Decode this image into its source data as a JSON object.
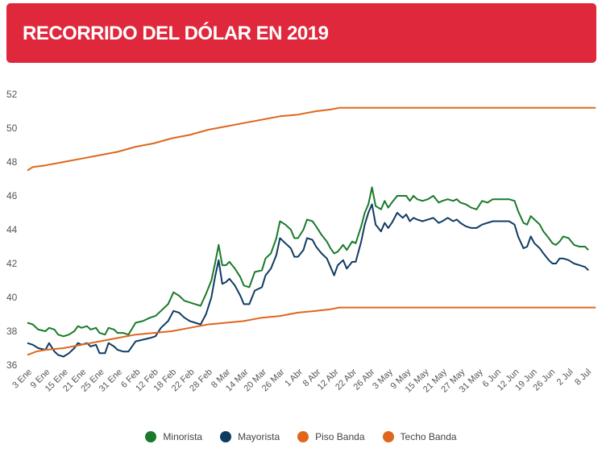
{
  "header": {
    "title": "RECORRIDO DEL DÓLAR EN 2019"
  },
  "colors": {
    "minorista": "#1a7a2a",
    "mayorista": "#0f3b63",
    "piso": "#e0661c",
    "techo": "#e0661c"
  },
  "legend": [
    {
      "label": "Minorista",
      "color": "#1a7a2a"
    },
    {
      "label": "Mayorista",
      "color": "#0f3b63"
    },
    {
      "label": "Piso Banda",
      "color": "#e0661c"
    },
    {
      "label": "Techo Banda",
      "color": "#e0661c"
    }
  ],
  "chart_data": {
    "type": "line",
    "title": "RECORRIDO DEL DÓLAR EN 2019",
    "xlabel": "",
    "ylabel": "",
    "x_ticks": [
      "3 Ene",
      "9 Ene",
      "15 Ene",
      "21 Ene",
      "25 Ene",
      "31 Ene",
      "6 Feb",
      "12 Feb",
      "18 Feb",
      "22 Feb",
      "28 Feb",
      "8 Mar",
      "14 Mar",
      "20 Mar",
      "26 Mar",
      "1 Abr",
      "8 Abr",
      "12 Abr",
      "22 Abr",
      "26 Abr",
      "3 May",
      "9 May",
      "15 May",
      "21 May",
      "27 May",
      "31 May",
      "6 Jun",
      "12 Jun",
      "19 Jun",
      "26 Jun",
      "2 Jul",
      "8 Jul"
    ],
    "y_ticks": [
      36,
      38,
      40,
      42,
      44,
      46,
      48,
      50,
      52
    ],
    "ylim": [
      36,
      52
    ],
    "grid": false,
    "legend_position": "bottom",
    "series": [
      {
        "name": "Minorista",
        "color": "#1a7a2a",
        "points": [
          [
            0,
            38.5
          ],
          [
            0.3,
            38.4
          ],
          [
            0.6,
            38.1
          ],
          [
            1.0,
            38.0
          ],
          [
            1.2,
            38.2
          ],
          [
            1.5,
            38.1
          ],
          [
            1.7,
            37.8
          ],
          [
            2.0,
            37.7
          ],
          [
            2.3,
            37.8
          ],
          [
            2.6,
            38.0
          ],
          [
            2.8,
            38.3
          ],
          [
            3.0,
            38.2
          ],
          [
            3.3,
            38.3
          ],
          [
            3.5,
            38.1
          ],
          [
            3.8,
            38.2
          ],
          [
            4.0,
            37.9
          ],
          [
            4.3,
            37.8
          ],
          [
            4.5,
            38.2
          ],
          [
            4.8,
            38.1
          ],
          [
            5.0,
            37.9
          ],
          [
            5.3,
            37.9
          ],
          [
            5.6,
            37.8
          ],
          [
            6.0,
            38.5
          ],
          [
            6.4,
            38.6
          ],
          [
            6.8,
            38.8
          ],
          [
            7.1,
            38.9
          ],
          [
            7.4,
            39.2
          ],
          [
            7.8,
            39.6
          ],
          [
            8.1,
            40.3
          ],
          [
            8.4,
            40.1
          ],
          [
            8.7,
            39.8
          ],
          [
            9.0,
            39.7
          ],
          [
            9.3,
            39.6
          ],
          [
            9.6,
            39.5
          ],
          [
            9.9,
            40.2
          ],
          [
            10.2,
            41.0
          ],
          [
            10.4,
            42.0
          ],
          [
            10.6,
            43.1
          ],
          [
            10.8,
            41.9
          ],
          [
            11.0,
            41.9
          ],
          [
            11.2,
            42.1
          ],
          [
            11.5,
            41.7
          ],
          [
            11.8,
            41.2
          ],
          [
            12.0,
            40.7
          ],
          [
            12.3,
            40.6
          ],
          [
            12.6,
            41.5
          ],
          [
            13.0,
            41.6
          ],
          [
            13.2,
            42.3
          ],
          [
            13.5,
            42.6
          ],
          [
            13.8,
            43.5
          ],
          [
            14.0,
            44.5
          ],
          [
            14.3,
            44.3
          ],
          [
            14.6,
            44.0
          ],
          [
            14.8,
            43.5
          ],
          [
            15.0,
            43.5
          ],
          [
            15.3,
            44.0
          ],
          [
            15.5,
            44.6
          ],
          [
            15.8,
            44.5
          ],
          [
            16.0,
            44.2
          ],
          [
            16.3,
            43.7
          ],
          [
            16.6,
            43.3
          ],
          [
            16.8,
            42.9
          ],
          [
            17.0,
            42.6
          ],
          [
            17.2,
            42.7
          ],
          [
            17.5,
            43.1
          ],
          [
            17.7,
            42.8
          ],
          [
            18.0,
            43.3
          ],
          [
            18.2,
            43.2
          ],
          [
            18.5,
            44.2
          ],
          [
            18.7,
            45.0
          ],
          [
            18.9,
            45.5
          ],
          [
            19.1,
            46.5
          ],
          [
            19.3,
            45.4
          ],
          [
            19.6,
            45.2
          ],
          [
            19.8,
            45.7
          ],
          [
            20.0,
            45.3
          ],
          [
            20.2,
            45.6
          ],
          [
            20.5,
            46.0
          ],
          [
            20.8,
            46.0
          ],
          [
            21.0,
            46.0
          ],
          [
            21.2,
            45.7
          ],
          [
            21.4,
            46.0
          ],
          [
            21.6,
            45.8
          ],
          [
            21.9,
            45.7
          ],
          [
            22.2,
            45.8
          ],
          [
            22.5,
            46.0
          ],
          [
            22.8,
            45.6
          ],
          [
            23.0,
            45.7
          ],
          [
            23.3,
            45.8
          ],
          [
            23.6,
            45.7
          ],
          [
            23.8,
            45.8
          ],
          [
            24.0,
            45.6
          ],
          [
            24.3,
            45.5
          ],
          [
            24.6,
            45.3
          ],
          [
            24.9,
            45.2
          ],
          [
            25.2,
            45.7
          ],
          [
            25.5,
            45.6
          ],
          [
            25.8,
            45.8
          ],
          [
            26.1,
            45.8
          ],
          [
            26.4,
            45.8
          ],
          [
            26.7,
            45.8
          ],
          [
            27.0,
            45.7
          ],
          [
            27.2,
            45.1
          ],
          [
            27.5,
            44.4
          ],
          [
            27.7,
            44.3
          ],
          [
            27.9,
            44.8
          ],
          [
            28.1,
            44.6
          ],
          [
            28.4,
            44.3
          ],
          [
            28.6,
            43.9
          ],
          [
            28.9,
            43.5
          ],
          [
            29.1,
            43.2
          ],
          [
            29.3,
            43.1
          ],
          [
            29.5,
            43.3
          ],
          [
            29.7,
            43.6
          ],
          [
            30.0,
            43.5
          ],
          [
            30.3,
            43.1
          ],
          [
            30.6,
            43.0
          ],
          [
            30.9,
            43.0
          ],
          [
            31.1,
            42.8
          ]
        ]
      },
      {
        "name": "Mayorista",
        "color": "#0f3b63",
        "points": [
          [
            0,
            37.3
          ],
          [
            0.3,
            37.2
          ],
          [
            0.6,
            37.0
          ],
          [
            1.0,
            36.9
          ],
          [
            1.2,
            37.3
          ],
          [
            1.5,
            36.8
          ],
          [
            1.7,
            36.6
          ],
          [
            2.0,
            36.5
          ],
          [
            2.3,
            36.7
          ],
          [
            2.6,
            37.0
          ],
          [
            2.8,
            37.3
          ],
          [
            3.0,
            37.2
          ],
          [
            3.3,
            37.3
          ],
          [
            3.5,
            37.1
          ],
          [
            3.8,
            37.2
          ],
          [
            4.0,
            36.7
          ],
          [
            4.3,
            36.7
          ],
          [
            4.5,
            37.3
          ],
          [
            4.8,
            37.1
          ],
          [
            5.0,
            36.9
          ],
          [
            5.3,
            36.8
          ],
          [
            5.6,
            36.8
          ],
          [
            6.0,
            37.4
          ],
          [
            6.4,
            37.5
          ],
          [
            6.8,
            37.6
          ],
          [
            7.1,
            37.7
          ],
          [
            7.4,
            38.2
          ],
          [
            7.8,
            38.6
          ],
          [
            8.1,
            39.2
          ],
          [
            8.4,
            39.1
          ],
          [
            8.7,
            38.8
          ],
          [
            9.0,
            38.6
          ],
          [
            9.3,
            38.5
          ],
          [
            9.6,
            38.4
          ],
          [
            9.9,
            39.0
          ],
          [
            10.2,
            40.0
          ],
          [
            10.4,
            41.2
          ],
          [
            10.6,
            42.2
          ],
          [
            10.8,
            40.8
          ],
          [
            11.0,
            40.9
          ],
          [
            11.2,
            41.1
          ],
          [
            11.5,
            40.7
          ],
          [
            11.8,
            40.1
          ],
          [
            12.0,
            39.6
          ],
          [
            12.3,
            39.6
          ],
          [
            12.6,
            40.4
          ],
          [
            13.0,
            40.6
          ],
          [
            13.2,
            41.3
          ],
          [
            13.5,
            41.7
          ],
          [
            13.8,
            42.5
          ],
          [
            14.0,
            43.5
          ],
          [
            14.3,
            43.2
          ],
          [
            14.6,
            42.9
          ],
          [
            14.8,
            42.4
          ],
          [
            15.0,
            42.4
          ],
          [
            15.3,
            42.8
          ],
          [
            15.5,
            43.5
          ],
          [
            15.8,
            43.4
          ],
          [
            16.0,
            43.0
          ],
          [
            16.3,
            42.6
          ],
          [
            16.6,
            42.3
          ],
          [
            16.8,
            41.8
          ],
          [
            17.0,
            41.3
          ],
          [
            17.2,
            41.9
          ],
          [
            17.5,
            42.2
          ],
          [
            17.7,
            41.7
          ],
          [
            18.0,
            42.1
          ],
          [
            18.2,
            42.1
          ],
          [
            18.5,
            43.3
          ],
          [
            18.7,
            44.3
          ],
          [
            18.9,
            45.0
          ],
          [
            19.1,
            45.5
          ],
          [
            19.3,
            44.3
          ],
          [
            19.6,
            43.9
          ],
          [
            19.8,
            44.4
          ],
          [
            20.0,
            44.1
          ],
          [
            20.2,
            44.4
          ],
          [
            20.5,
            45.0
          ],
          [
            20.8,
            44.7
          ],
          [
            21.0,
            44.9
          ],
          [
            21.2,
            44.5
          ],
          [
            21.4,
            44.7
          ],
          [
            21.6,
            44.6
          ],
          [
            21.9,
            44.5
          ],
          [
            22.2,
            44.6
          ],
          [
            22.5,
            44.7
          ],
          [
            22.8,
            44.4
          ],
          [
            23.0,
            44.5
          ],
          [
            23.3,
            44.7
          ],
          [
            23.6,
            44.5
          ],
          [
            23.8,
            44.6
          ],
          [
            24.0,
            44.4
          ],
          [
            24.3,
            44.2
          ],
          [
            24.6,
            44.1
          ],
          [
            24.9,
            44.1
          ],
          [
            25.2,
            44.3
          ],
          [
            25.5,
            44.4
          ],
          [
            25.8,
            44.5
          ],
          [
            26.1,
            44.5
          ],
          [
            26.4,
            44.5
          ],
          [
            26.7,
            44.5
          ],
          [
            27.0,
            44.3
          ],
          [
            27.2,
            43.6
          ],
          [
            27.5,
            42.9
          ],
          [
            27.7,
            43.0
          ],
          [
            27.9,
            43.6
          ],
          [
            28.1,
            43.2
          ],
          [
            28.4,
            42.9
          ],
          [
            28.6,
            42.6
          ],
          [
            28.9,
            42.2
          ],
          [
            29.1,
            42.0
          ],
          [
            29.3,
            42.0
          ],
          [
            29.5,
            42.3
          ],
          [
            29.7,
            42.3
          ],
          [
            30.0,
            42.2
          ],
          [
            30.3,
            42.0
          ],
          [
            30.6,
            41.9
          ],
          [
            30.9,
            41.8
          ],
          [
            31.1,
            41.6
          ]
        ]
      },
      {
        "name": "Piso Banda",
        "color": "#e0661c",
        "points": [
          [
            0,
            36.6
          ],
          [
            0.5,
            36.8
          ],
          [
            1,
            36.9
          ],
          [
            2,
            37.0
          ],
          [
            3,
            37.2
          ],
          [
            4,
            37.4
          ],
          [
            5,
            37.6
          ],
          [
            6,
            37.8
          ],
          [
            7,
            37.9
          ],
          [
            8,
            38.0
          ],
          [
            9,
            38.2
          ],
          [
            10,
            38.4
          ],
          [
            11,
            38.5
          ],
          [
            12,
            38.6
          ],
          [
            13,
            38.8
          ],
          [
            14,
            38.9
          ],
          [
            15,
            39.1
          ],
          [
            16,
            39.2
          ],
          [
            16.8,
            39.3
          ],
          [
            17.3,
            39.4
          ],
          [
            18,
            39.4
          ],
          [
            20,
            39.4
          ],
          [
            25,
            39.4
          ],
          [
            31.5,
            39.4
          ]
        ]
      },
      {
        "name": "Techo Banda",
        "color": "#e0661c",
        "points": [
          [
            0,
            47.5
          ],
          [
            0.3,
            47.7
          ],
          [
            1,
            47.8
          ],
          [
            2,
            48.0
          ],
          [
            3,
            48.2
          ],
          [
            4,
            48.4
          ],
          [
            5,
            48.6
          ],
          [
            6,
            48.9
          ],
          [
            7,
            49.1
          ],
          [
            8,
            49.4
          ],
          [
            9,
            49.6
          ],
          [
            10,
            49.9
          ],
          [
            11,
            50.1
          ],
          [
            12,
            50.3
          ],
          [
            13,
            50.5
          ],
          [
            14,
            50.7
          ],
          [
            15,
            50.8
          ],
          [
            16,
            51.0
          ],
          [
            16.8,
            51.1
          ],
          [
            17.3,
            51.2
          ],
          [
            18,
            51.2
          ],
          [
            20,
            51.2
          ],
          [
            25,
            51.2
          ],
          [
            31.5,
            51.2
          ]
        ]
      }
    ]
  }
}
